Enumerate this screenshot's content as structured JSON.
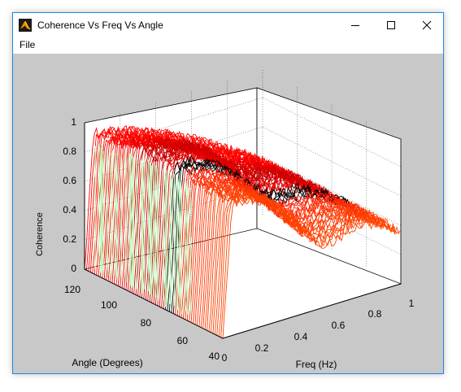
{
  "window": {
    "title": "Coherence Vs Freq Vs Angle",
    "icon": "matlab-logo-icon"
  },
  "window_controls": {
    "minimize_icon": "minimize-icon",
    "maximize_icon": "maximize-icon",
    "close_icon": "close-icon"
  },
  "menubar": {
    "file_label": "File"
  },
  "colors": {
    "canvas_bg": "#c8c8c8",
    "window_border": "#1e88e5"
  },
  "chart_data": {
    "type": "line",
    "plot_kind": "3D waterfall surface",
    "xlabel": "Freq (Hz)",
    "ylabel": "Angle (Degrees)",
    "zlabel": "Coherence",
    "x_ticks": [
      "0",
      "0.2",
      "0.4",
      "0.6",
      "0.8",
      "1"
    ],
    "y_ticks": [
      "40",
      "60",
      "80",
      "100",
      "120"
    ],
    "z_ticks": [
      "0",
      "0.2",
      "0.4",
      "0.6",
      "0.8",
      "1"
    ],
    "xlim": [
      0,
      1
    ],
    "ylim": [
      40,
      120
    ],
    "zlim": [
      0,
      1
    ],
    "grid": true,
    "colormap": "jet"
  }
}
